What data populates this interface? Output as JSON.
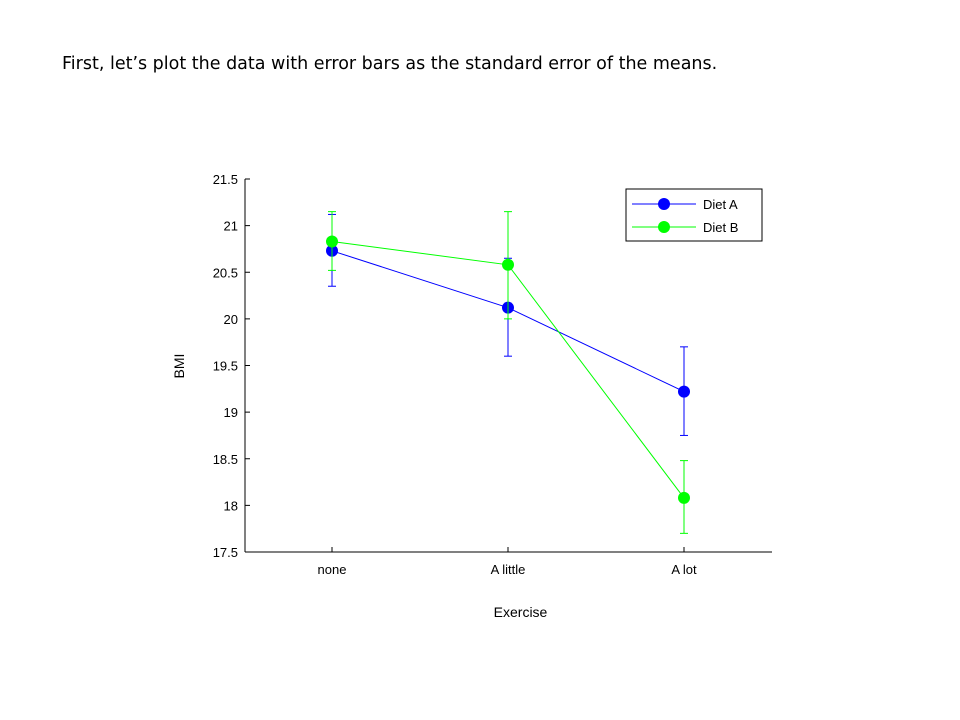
{
  "slide": {
    "text": "First, let’s plot the data with error bars as the standard error of the means."
  },
  "chart_data": {
    "type": "line",
    "title": "",
    "xlabel": "Exercise",
    "ylabel": "BMI",
    "categories": [
      "none",
      "A little",
      "A lot"
    ],
    "ylim": [
      17.5,
      21.5
    ],
    "yticks": [
      17.5,
      18,
      18.5,
      19,
      19.5,
      20,
      20.5,
      21,
      21.5
    ],
    "ytick_labels": [
      "17.5",
      "18",
      "18.5",
      "19",
      "19.5",
      "20",
      "20.5",
      "21",
      "21.5"
    ],
    "grid": false,
    "legend_position": "top-right",
    "series": [
      {
        "name": "Diet A",
        "color": "#0000ff",
        "values": [
          20.73,
          20.12,
          19.22
        ],
        "err_low": [
          20.35,
          19.6,
          18.75
        ],
        "err_high": [
          21.12,
          20.65,
          19.7
        ]
      },
      {
        "name": "Diet B",
        "color": "#00ff00",
        "values": [
          20.83,
          20.58,
          18.08
        ],
        "err_low": [
          20.52,
          20.0,
          17.7
        ],
        "err_high": [
          21.15,
          21.15,
          18.48
        ]
      }
    ]
  }
}
